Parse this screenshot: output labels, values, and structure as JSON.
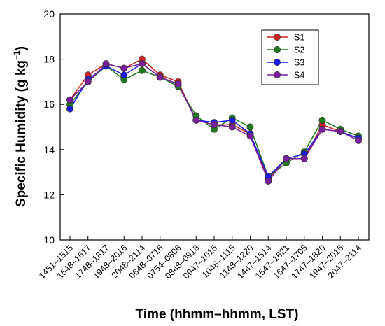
{
  "chart_data": {
    "type": "line",
    "title": "",
    "xlabel": "Time (hhmm–hhmm, LST)",
    "ylabel_main": "Specific Humidity (g kg",
    "ylabel_sup": "−1",
    "ylabel_close": ")",
    "ylim": [
      10,
      20
    ],
    "yticks": [
      "10",
      "12",
      "14",
      "16",
      "18",
      "20"
    ],
    "categories": [
      "1451–1515",
      "1548–1617",
      "1748–1817",
      "1948–2016",
      "2048–2114",
      "0648–0716",
      "0754–0806",
      "0848–0918",
      "0947–1015",
      "1048–1115",
      "1148–1220",
      "1447–1514",
      "1547–1621",
      "1647–1705",
      "1747–1820",
      "1947–2016",
      "2047–2114"
    ],
    "legend_position": "top-right",
    "grid": false,
    "series": [
      {
        "name": "S1",
        "color": "#cc2222",
        "values": [
          16.2,
          17.3,
          17.8,
          17.6,
          18.0,
          17.3,
          17.0,
          15.3,
          15.1,
          15.1,
          14.7,
          12.7,
          13.6,
          13.6,
          15.1,
          14.8,
          14.5
        ]
      },
      {
        "name": "S2",
        "color": "#1f7a1f",
        "values": [
          16.0,
          17.0,
          17.7,
          17.1,
          17.5,
          17.2,
          16.8,
          15.5,
          14.9,
          15.4,
          15.0,
          12.8,
          13.4,
          13.9,
          15.3,
          14.9,
          14.6
        ]
      },
      {
        "name": "S3",
        "color": "#1a1aee",
        "values": [
          15.8,
          17.1,
          17.7,
          17.3,
          17.8,
          17.2,
          16.9,
          15.3,
          15.2,
          15.3,
          14.7,
          12.8,
          13.6,
          13.8,
          14.9,
          14.8,
          14.5
        ]
      },
      {
        "name": "S4",
        "color": "#7a1f9a",
        "values": [
          16.2,
          17.0,
          17.8,
          17.6,
          17.8,
          17.2,
          16.9,
          15.3,
          15.1,
          15.0,
          14.6,
          12.6,
          13.6,
          13.6,
          14.9,
          14.8,
          14.4
        ]
      }
    ]
  }
}
